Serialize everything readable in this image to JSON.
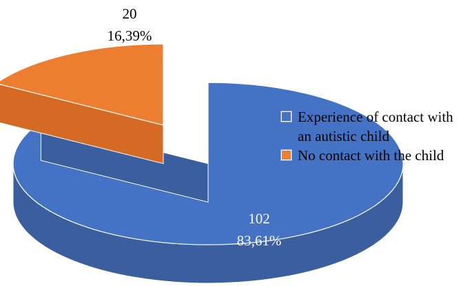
{
  "chart_data": {
    "type": "pie",
    "style": "3d-exploded",
    "slices": [
      {
        "label": "Experience of contact with an autistic child",
        "value": 102,
        "percent_label": "83,61%",
        "color": "#4472C4",
        "side_color": "#3A5E9E"
      },
      {
        "label": "No contact with the child",
        "value": 20,
        "percent_label": "16,39%",
        "color": "#ED7D31",
        "side_color": "#C0601F"
      }
    ],
    "legend_position": "right"
  }
}
